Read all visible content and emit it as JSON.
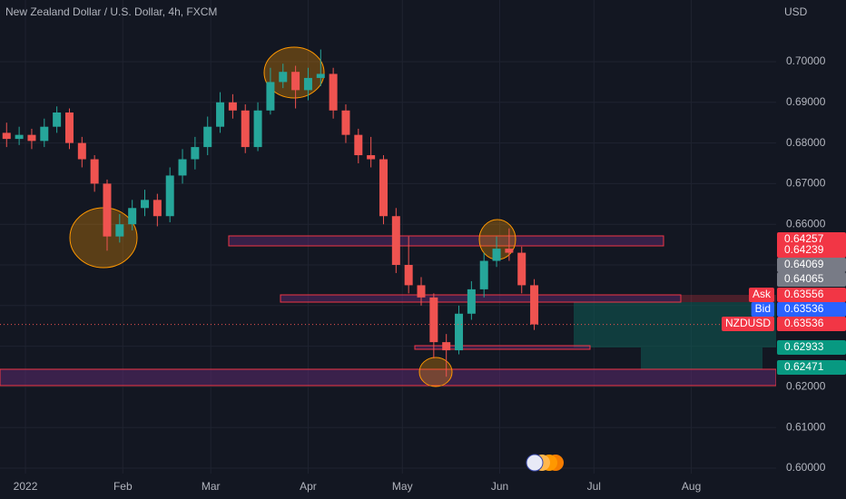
{
  "chart_data": {
    "type": "candlestick",
    "title": "New Zealand Dollar / U.S. Dollar, 4h, FXCM",
    "currency": "USD",
    "x": [
      -6,
      -2,
      2,
      6,
      10,
      14,
      18,
      22,
      26,
      30,
      34,
      38,
      42,
      46,
      50,
      54,
      58,
      62,
      66,
      70,
      74,
      78,
      82,
      86,
      90,
      94,
      98,
      102,
      106,
      110,
      114,
      118,
      122,
      126,
      130,
      134,
      138,
      142,
      146,
      150,
      154,
      158,
      162
    ],
    "open": [
      0.6825,
      0.681,
      0.682,
      0.6805,
      0.684,
      0.6875,
      0.68,
      0.676,
      0.67,
      0.657,
      0.66,
      0.664,
      0.666,
      0.662,
      0.672,
      0.676,
      0.679,
      0.684,
      0.69,
      0.688,
      0.679,
      0.688,
      0.695,
      0.6975,
      0.693,
      0.696,
      0.697,
      0.688,
      0.682,
      0.677,
      0.676,
      0.662,
      0.65,
      0.645,
      0.642,
      0.631,
      0.629,
      0.638,
      0.644,
      0.651,
      0.654,
      0.653,
      0.645
    ],
    "high": [
      0.685,
      0.684,
      0.6835,
      0.686,
      0.689,
      0.6885,
      0.6815,
      0.677,
      0.671,
      0.6625,
      0.666,
      0.6685,
      0.6675,
      0.674,
      0.6785,
      0.6815,
      0.6865,
      0.6925,
      0.692,
      0.6895,
      0.69,
      0.6985,
      0.6995,
      0.699,
      0.6985,
      0.703,
      0.6985,
      0.6895,
      0.6835,
      0.6815,
      0.677,
      0.664,
      0.657,
      0.647,
      0.643,
      0.633,
      0.64,
      0.646,
      0.653,
      0.657,
      0.659,
      0.6545,
      0.6465
    ],
    "low": [
      0.679,
      0.6795,
      0.6785,
      0.679,
      0.6825,
      0.6785,
      0.674,
      0.668,
      0.6535,
      0.6555,
      0.6585,
      0.662,
      0.6595,
      0.6605,
      0.67,
      0.6735,
      0.677,
      0.6825,
      0.686,
      0.6775,
      0.678,
      0.687,
      0.6935,
      0.6885,
      0.6905,
      0.694,
      0.686,
      0.68,
      0.675,
      0.674,
      0.66,
      0.648,
      0.643,
      0.64,
      0.627,
      0.6225,
      0.628,
      0.6365,
      0.642,
      0.6495,
      0.651,
      0.643,
      0.634
    ],
    "close": [
      0.681,
      0.682,
      0.6805,
      0.684,
      0.6875,
      0.68,
      0.676,
      0.67,
      0.657,
      0.66,
      0.664,
      0.666,
      0.662,
      0.672,
      0.676,
      0.679,
      0.684,
      0.69,
      0.688,
      0.679,
      0.688,
      0.695,
      0.6975,
      0.693,
      0.696,
      0.697,
      0.688,
      0.682,
      0.677,
      0.676,
      0.662,
      0.65,
      0.645,
      0.642,
      0.631,
      0.629,
      0.638,
      0.644,
      0.651,
      0.654,
      0.653,
      0.645,
      0.63536
    ],
    "up_color": "#26a69a",
    "down_color": "#ef5350",
    "xlim": [
      -8.1,
      239
    ],
    "ylim": [
      0.59866,
      0.71518
    ],
    "xticks": [
      {
        "value": 0,
        "label": "2022"
      },
      {
        "value": 31,
        "label": "Feb"
      },
      {
        "value": 59,
        "label": "Mar"
      },
      {
        "value": 90,
        "label": "Apr"
      },
      {
        "value": 120,
        "label": "May"
      },
      {
        "value": 151,
        "label": "Jun"
      },
      {
        "value": 181,
        "label": "Jul"
      },
      {
        "value": 212,
        "label": "Aug"
      }
    ],
    "yticks": [
      {
        "value": 0.6,
        "label": "0.60000"
      },
      {
        "value": 0.61,
        "label": "0.61000"
      },
      {
        "value": 0.62,
        "label": "0.62000"
      },
      {
        "value": 0.63,
        "label": "0.63000"
      },
      {
        "value": 0.64,
        "label": "0.64000"
      },
      {
        "value": 0.65,
        "label": "0.65000"
      },
      {
        "value": 0.66,
        "label": "0.66000"
      },
      {
        "value": 0.67,
        "label": "0.67000"
      },
      {
        "value": 0.68,
        "label": "0.68000"
      },
      {
        "value": 0.69,
        "label": "0.69000"
      },
      {
        "value": 0.7,
        "label": "0.70000"
      }
    ],
    "price_badges": [
      {
        "value": 0.64257,
        "color": "#f23645"
      },
      {
        "value": 0.64239,
        "color": "#f23645"
      },
      {
        "value": 0.64069,
        "color": "#787b86"
      },
      {
        "value": 0.64065,
        "color": "#787b86"
      },
      {
        "name": "Ask",
        "value": 0.63556,
        "color": "#f23645"
      },
      {
        "name": "Bid",
        "value": 0.63536,
        "color": "#2962ff"
      },
      {
        "name": "NZDUSD",
        "value": 0.63536,
        "color": "#f23645"
      },
      {
        "value": 0.62933,
        "color": "#089981"
      },
      {
        "value": 0.62471,
        "color": "#089981"
      }
    ]
  }
}
